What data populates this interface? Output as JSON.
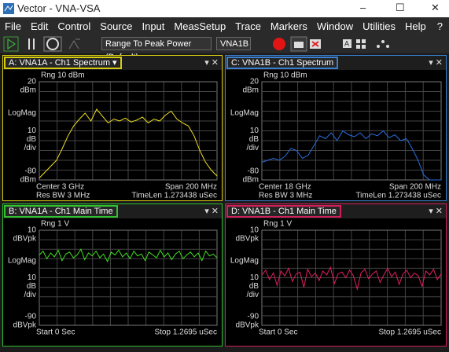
{
  "window": {
    "title": "Vector - VNA-VSA"
  },
  "menu": [
    "File",
    "Edit",
    "Control",
    "Source",
    "Input",
    "MeasSetup",
    "Trace",
    "Markers",
    "Window",
    "Utilities",
    "Help"
  ],
  "help_icon": "?",
  "toolbar": {
    "range_dropdown": "Range To Peak Power (Default)",
    "channel_dropdown": "VNA1B"
  },
  "panes": [
    {
      "title": "A: VNA1A - Ch1 Spectrum",
      "color": "#d8cc10",
      "trace_color": "#f0e020",
      "range": "Rng 10 dBm",
      "unit": "dBm",
      "format": "LogMag",
      "per_div": 10,
      "per_div_unit": "dB",
      "div_label": "/div",
      "ylim": [
        -80,
        20
      ],
      "footer": [
        [
          "Center 3 GHz",
          "Span 200 MHz"
        ],
        [
          "Res BW 3 MHz",
          "TimeLen 1.273438 uSec"
        ]
      ],
      "values": [
        -78,
        -72,
        -66,
        -60,
        -48,
        -35,
        -25,
        -18,
        -12,
        -20,
        -8,
        -15,
        -22,
        -18,
        -20,
        -17,
        -21,
        -19,
        -16,
        -22,
        -18,
        -20,
        -14,
        -10,
        -18,
        -22,
        -25,
        -35,
        -50,
        -62,
        -70,
        -76
      ]
    },
    {
      "title": "C: VNA1B - Ch1 Spectrum",
      "color": "#3a7fd0",
      "trace_color": "#2a6fe0",
      "range": "Rng 10 dBm",
      "unit": "dBm",
      "format": "LogMag",
      "per_div": 10,
      "per_div_unit": "dB",
      "div_label": "/div",
      "ylim": [
        -80,
        20
      ],
      "footer": [
        [
          "Center 18 GHz",
          "Span 200 MHz"
        ],
        [
          "Res BW 3 MHz",
          "TimeLen 1.273438 uSec"
        ]
      ],
      "values": [
        -62,
        -60,
        -58,
        -60,
        -56,
        -48,
        -50,
        -58,
        -55,
        -45,
        -35,
        -38,
        -32,
        -40,
        -30,
        -34,
        -36,
        -32,
        -38,
        -33,
        -35,
        -30,
        -37,
        -34,
        -40,
        -38,
        -48,
        -60,
        -75,
        -80,
        -80,
        -80
      ]
    },
    {
      "title": "B: VNA1A - Ch1 Main Time",
      "color": "#30c030",
      "trace_color": "#40e020",
      "range": "Rng 1  V",
      "unit": "dBVpk",
      "format": "LogMag",
      "per_div": 10,
      "per_div_unit": "dB",
      "div_label": "/div",
      "ylim": [
        -90,
        10
      ],
      "footer": [
        [
          "Start 0  Sec",
          "Stop 1.2695 uSec"
        ]
      ],
      "values": [
        -16,
        -12,
        -20,
        -14,
        -18,
        -11,
        -22,
        -15,
        -13,
        -19,
        -16,
        -10,
        -21,
        -14,
        -17,
        -12,
        -19,
        -15,
        -23,
        -13,
        -16,
        -11,
        -18,
        -14,
        -20,
        -12,
        -17,
        -15,
        -22,
        -13,
        -16,
        -19,
        -11,
        -18,
        -14,
        -21,
        -15,
        -12,
        -20,
        -16,
        -13,
        -18,
        -14,
        -22,
        -12,
        -17,
        -15,
        -19
      ]
    },
    {
      "title": "D: VNA1B - Ch1 Main Time",
      "color": "#d0205a",
      "trace_color": "#e02060",
      "range": "Rng 1  V",
      "unit": "dBVpk",
      "format": "LogMag",
      "per_div": 10,
      "per_div_unit": "dB",
      "div_label": "/div",
      "ylim": [
        -90,
        10
      ],
      "footer": [
        [
          "Start 0  Sec",
          "Stop 1.2695 uSec"
        ]
      ],
      "values": [
        -37,
        -32,
        -42,
        -35,
        -48,
        -33,
        -38,
        -30,
        -44,
        -36,
        -34,
        -50,
        -31,
        -39,
        -35,
        -43,
        -33,
        -37,
        -29,
        -46,
        -36,
        -34,
        -40,
        -32,
        -38,
        -52,
        -35,
        -31,
        -41,
        -36,
        -33,
        -45,
        -37,
        -30,
        -39,
        -34,
        -47,
        -36,
        -32,
        -40,
        -35,
        -38,
        -49,
        -33,
        -37,
        -31,
        -42,
        -36
      ]
    }
  ]
}
